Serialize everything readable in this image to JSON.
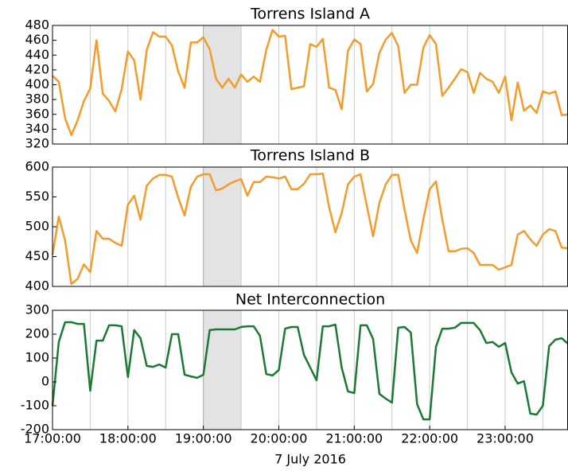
{
  "chart_data": [
    {
      "type": "line",
      "title": "Torrens Island A",
      "color": "#f39c2b",
      "x": [
        "17:00:00",
        "17:05:00",
        "17:10:00",
        "17:15:00",
        "17:20:00",
        "17:25:00",
        "17:30:00",
        "17:35:00",
        "17:40:00",
        "17:45:00",
        "17:50:00",
        "17:55:00",
        "18:00:00",
        "18:05:00",
        "18:10:00",
        "18:15:00",
        "18:20:00",
        "18:25:00",
        "18:30:00",
        "18:35:00",
        "18:40:00",
        "18:45:00",
        "18:50:00",
        "18:55:00",
        "19:00:00",
        "19:05:00",
        "19:10:00",
        "19:15:00",
        "19:20:00",
        "19:25:00",
        "19:30:00",
        "19:35:00",
        "19:40:00",
        "19:45:00",
        "19:50:00",
        "19:55:00",
        "20:00:00",
        "20:05:00",
        "20:10:00",
        "20:15:00",
        "20:20:00",
        "20:25:00",
        "20:30:00",
        "20:35:00",
        "20:40:00",
        "20:45:00",
        "20:50:00",
        "20:55:00",
        "21:00:00",
        "21:05:00",
        "21:10:00",
        "21:15:00",
        "21:20:00",
        "21:25:00",
        "21:30:00",
        "21:35:00",
        "21:40:00",
        "21:45:00",
        "21:50:00",
        "21:55:00",
        "22:00:00",
        "22:05:00",
        "22:10:00",
        "22:15:00",
        "22:20:00",
        "22:25:00",
        "22:30:00",
        "22:35:00",
        "22:40:00",
        "22:45:00",
        "22:50:00",
        "22:55:00",
        "23:00:00",
        "23:05:00",
        "23:10:00",
        "23:15:00",
        "23:20:00",
        "23:25:00",
        "23:30:00",
        "23:35:00",
        "23:40:00",
        "23:45:00",
        "23:50:00"
      ],
      "values": [
        412,
        404,
        355,
        332,
        352,
        378,
        395,
        460,
        388,
        378,
        364,
        394,
        445,
        433,
        380,
        447,
        471,
        465,
        465,
        453,
        418,
        396,
        457,
        457,
        464,
        448,
        408,
        396,
        408,
        396,
        414,
        404,
        411,
        404,
        447,
        474,
        465,
        466,
        394,
        396,
        398,
        455,
        451,
        462,
        396,
        393,
        367,
        446,
        461,
        455,
        391,
        401,
        443,
        461,
        470,
        452,
        389,
        400,
        400,
        450,
        467,
        455,
        385,
        396,
        408,
        421,
        417,
        389,
        416,
        408,
        404,
        389,
        411,
        352,
        403,
        365,
        372,
        362,
        391,
        388,
        391,
        359,
        360
      ],
      "xlim": [
        "17:00:00",
        "23:50:00"
      ],
      "ylim": [
        320,
        480
      ],
      "yticks": [
        320,
        340,
        360,
        380,
        400,
        420,
        440,
        460,
        480
      ],
      "vlines": [
        "17:30:00",
        "18:00:00",
        "18:30:00",
        "19:30:00",
        "20:00:00",
        "20:30:00",
        "21:00:00",
        "21:30:00",
        "22:00:00",
        "22:30:00",
        "23:00:00",
        "23:30:00"
      ],
      "shade": [
        "19:00:00",
        "19:30:00"
      ]
    },
    {
      "type": "line",
      "title": "Torrens Island B",
      "color": "#f39c2b",
      "x": [
        "17:00:00",
        "17:05:00",
        "17:10:00",
        "17:15:00",
        "17:20:00",
        "17:25:00",
        "17:30:00",
        "17:35:00",
        "17:40:00",
        "17:45:00",
        "17:50:00",
        "17:55:00",
        "18:00:00",
        "18:05:00",
        "18:10:00",
        "18:15:00",
        "18:20:00",
        "18:25:00",
        "18:30:00",
        "18:35:00",
        "18:40:00",
        "18:45:00",
        "18:50:00",
        "18:55:00",
        "19:00:00",
        "19:05:00",
        "19:10:00",
        "19:15:00",
        "19:20:00",
        "19:25:00",
        "19:30:00",
        "19:35:00",
        "19:40:00",
        "19:45:00",
        "19:50:00",
        "19:55:00",
        "20:00:00",
        "20:05:00",
        "20:10:00",
        "20:15:00",
        "20:20:00",
        "20:25:00",
        "20:30:00",
        "20:35:00",
        "20:40:00",
        "20:45:00",
        "20:50:00",
        "20:55:00",
        "21:00:00",
        "21:05:00",
        "21:10:00",
        "21:15:00",
        "21:20:00",
        "21:25:00",
        "21:30:00",
        "21:35:00",
        "21:40:00",
        "21:45:00",
        "21:50:00",
        "21:55:00",
        "22:00:00",
        "22:05:00",
        "22:10:00",
        "22:15:00",
        "22:20:00",
        "22:25:00",
        "22:30:00",
        "22:35:00",
        "22:40:00",
        "22:45:00",
        "22:50:00",
        "22:55:00",
        "23:00:00",
        "23:05:00",
        "23:10:00",
        "23:15:00",
        "23:20:00",
        "23:25:00",
        "23:30:00",
        "23:35:00",
        "23:40:00",
        "23:45:00",
        "23:50:00"
      ],
      "values": [
        453,
        517,
        477,
        404,
        413,
        437,
        424,
        493,
        480,
        480,
        473,
        468,
        537,
        552,
        512,
        569,
        581,
        587,
        587,
        584,
        549,
        519,
        567,
        584,
        588,
        588,
        561,
        564,
        571,
        576,
        580,
        552,
        575,
        575,
        584,
        583,
        581,
        584,
        563,
        563,
        572,
        588,
        588,
        589,
        533,
        491,
        523,
        571,
        584,
        588,
        535,
        484,
        540,
        571,
        587,
        587,
        529,
        477,
        456,
        513,
        563,
        576,
        512,
        459,
        459,
        463,
        464,
        456,
        436,
        436,
        436,
        428,
        432,
        436,
        487,
        493,
        479,
        468,
        487,
        496,
        493,
        465,
        464
      ],
      "xlim": [
        "17:00:00",
        "23:50:00"
      ],
      "ylim": [
        400,
        600
      ],
      "yticks": [
        400,
        450,
        500,
        550,
        600
      ],
      "vlines": [
        "17:30:00",
        "18:00:00",
        "18:30:00",
        "19:30:00",
        "20:00:00",
        "20:30:00",
        "21:00:00",
        "21:30:00",
        "22:00:00",
        "22:30:00",
        "23:00:00",
        "23:30:00"
      ],
      "shade": [
        "19:00:00",
        "19:30:00"
      ]
    },
    {
      "type": "line",
      "title": "Net Interconnection",
      "color": "#1a7a32",
      "xlabel": "7 July 2016",
      "x": [
        "17:00:00",
        "17:05:00",
        "17:10:00",
        "17:15:00",
        "17:20:00",
        "17:25:00",
        "17:30:00",
        "17:35:00",
        "17:40:00",
        "17:45:00",
        "17:50:00",
        "17:55:00",
        "18:00:00",
        "18:05:00",
        "18:10:00",
        "18:15:00",
        "18:20:00",
        "18:25:00",
        "18:30:00",
        "18:35:00",
        "18:40:00",
        "18:45:00",
        "18:50:00",
        "18:55:00",
        "19:00:00",
        "19:05:00",
        "19:10:00",
        "19:15:00",
        "19:20:00",
        "19:25:00",
        "19:30:00",
        "19:35:00",
        "19:40:00",
        "19:45:00",
        "19:50:00",
        "19:55:00",
        "20:00:00",
        "20:05:00",
        "20:10:00",
        "20:15:00",
        "20:20:00",
        "20:25:00",
        "20:30:00",
        "20:35:00",
        "20:40:00",
        "20:45:00",
        "20:50:00",
        "20:55:00",
        "21:00:00",
        "21:05:00",
        "21:10:00",
        "21:15:00",
        "21:20:00",
        "21:25:00",
        "21:30:00",
        "21:35:00",
        "21:40:00",
        "21:45:00",
        "21:50:00",
        "21:55:00",
        "22:00:00",
        "22:05:00",
        "22:10:00",
        "22:15:00",
        "22:20:00",
        "22:25:00",
        "22:30:00",
        "22:35:00",
        "22:40:00",
        "22:45:00",
        "22:50:00",
        "22:55:00",
        "23:00:00",
        "23:05:00",
        "23:10:00",
        "23:15:00",
        "23:20:00",
        "23:25:00",
        "23:30:00",
        "23:35:00",
        "23:40:00",
        "23:45:00",
        "23:50:00"
      ],
      "values": [
        -100,
        167,
        250,
        250,
        243,
        243,
        -37,
        173,
        173,
        237,
        237,
        233,
        20,
        217,
        183,
        67,
        63,
        73,
        60,
        200,
        200,
        30,
        23,
        17,
        30,
        217,
        220,
        220,
        220,
        220,
        230,
        233,
        233,
        193,
        33,
        27,
        50,
        223,
        230,
        230,
        113,
        60,
        7,
        233,
        233,
        240,
        60,
        -40,
        -47,
        237,
        237,
        180,
        -50,
        -70,
        -87,
        227,
        230,
        207,
        -93,
        -157,
        -157,
        147,
        223,
        223,
        227,
        247,
        247,
        247,
        217,
        163,
        167,
        147,
        163,
        40,
        -7,
        3,
        -133,
        -137,
        -100,
        150,
        177,
        183,
        160
      ],
      "xlim": [
        "17:00:00",
        "23:50:00"
      ],
      "ylim": [
        -200,
        300
      ],
      "yticks": [
        -200,
        -100,
        0,
        100,
        200,
        300
      ],
      "xticks": [
        "17:00:00",
        "18:00:00",
        "19:00:00",
        "20:00:00",
        "21:00:00",
        "22:00:00",
        "23:00:00"
      ],
      "vlines": [
        "17:30:00",
        "18:00:00",
        "18:30:00",
        "19:30:00",
        "20:00:00",
        "20:30:00",
        "21:00:00",
        "21:30:00",
        "22:00:00",
        "22:30:00",
        "23:00:00",
        "23:30:00"
      ],
      "shade": [
        "19:00:00",
        "19:30:00"
      ]
    }
  ]
}
